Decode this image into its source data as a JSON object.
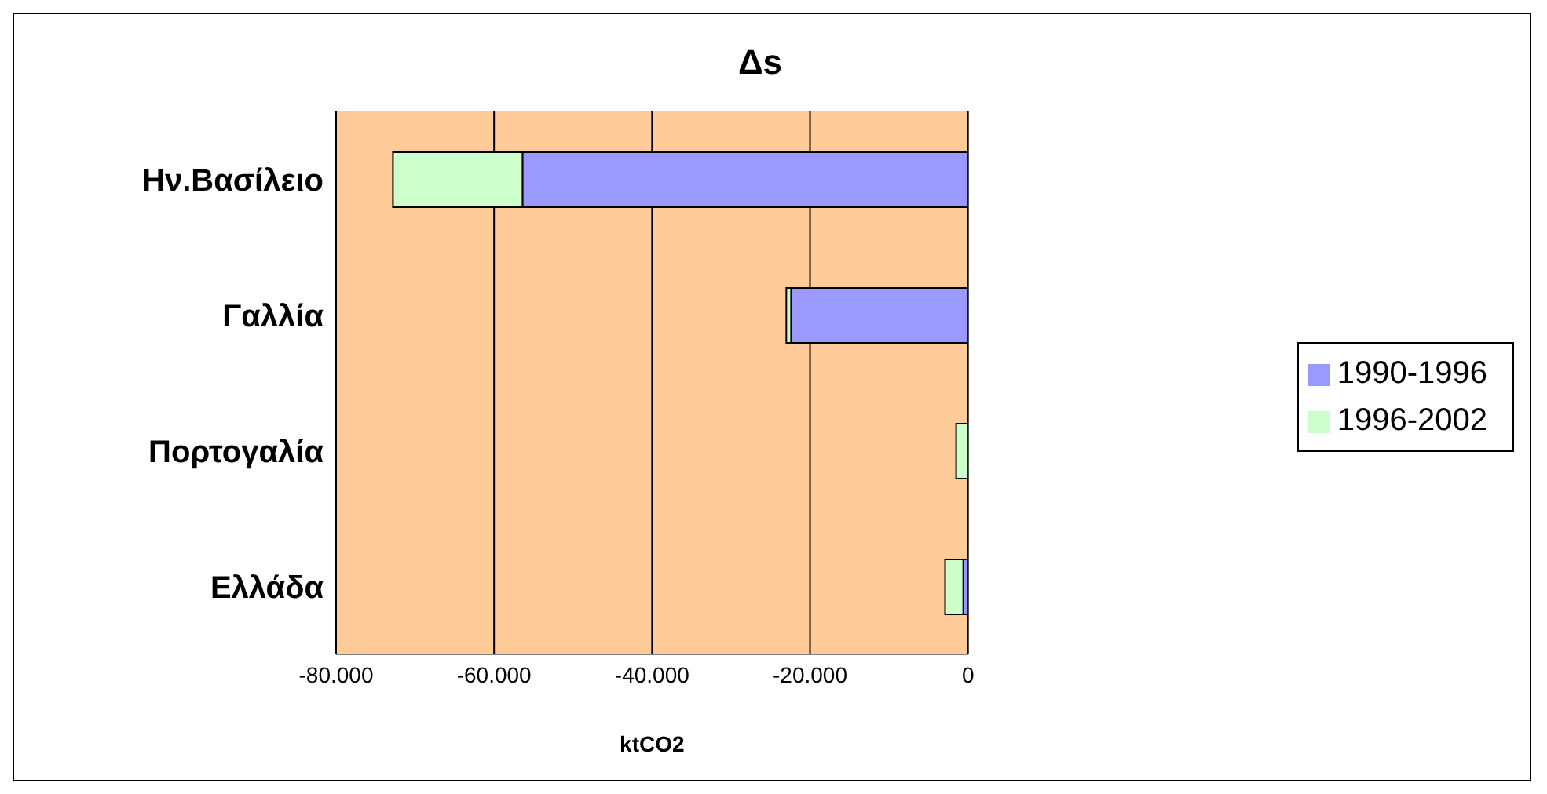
{
  "chart_data": {
    "type": "bar",
    "orientation": "horizontal",
    "stacked": true,
    "title": "Δs",
    "xlabel": "ktCO2",
    "categories": [
      "Ην.Βασίλειο",
      "Γαλλία",
      "Πορτογαλία",
      "Ελλάδα"
    ],
    "series": [
      {
        "name": "1990-1996",
        "color": "#9999ff",
        "values": [
          -56400,
          -22400,
          null,
          -600
        ]
      },
      {
        "name": "1996-2002",
        "color": "#ccffcc",
        "values": [
          -16400,
          -600,
          -1500,
          -2300
        ]
      }
    ],
    "xlim": [
      -80000,
      0
    ],
    "xticks": [
      {
        "value": -80000,
        "label": "-80.000"
      },
      {
        "value": -60000,
        "label": "-60.000"
      },
      {
        "value": -40000,
        "label": "-40.000"
      },
      {
        "value": -20000,
        "label": "-20.000"
      },
      0
    ],
    "grid": "x",
    "legend": "right"
  }
}
